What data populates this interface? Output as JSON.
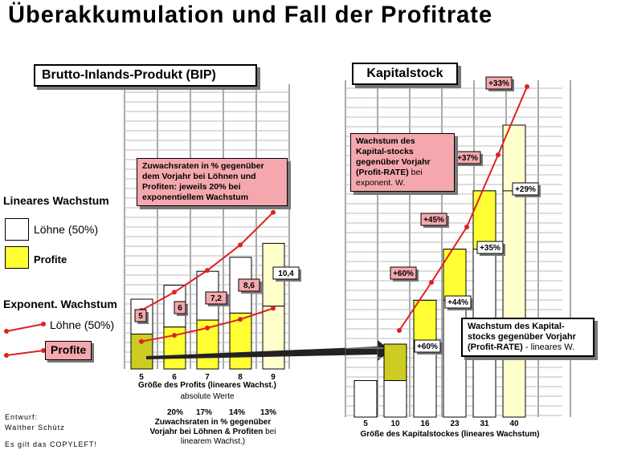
{
  "title": "Überakkumulation und Fall der Profitrate",
  "colors": {
    "profit_yellow": "#ffff33",
    "profit_olive": "#cccc22",
    "wage_white": "#ffffff",
    "wage_cream": "#ffffcc",
    "line_red": "#dd2222",
    "pink": "#f4a8ae",
    "grid": "#bbbbbb"
  },
  "left_panel": {
    "title": "Brutto-Inlands-Produkt (BIP)",
    "note": "Zuwachsraten in % gegenüber\ndem Vorjahr bei Löhnen und\nProfiten: jeweils 20% bei\nexponentiellem Wachstum",
    "xlabel": "Größe des Profits (lineares Wachst.)",
    "xlabel_sub": "absolute Werte",
    "growth_caption_bold": "Zuwachsraten in % gegenüber\nVorjahr bei Löhnen & Profiten",
    "growth_caption_light": "bei\nlinearem Wachst.)",
    "growth_rates": [
      "20%",
      "17%",
      "14%",
      "13%"
    ]
  },
  "right_panel": {
    "title": "Kapitalstock",
    "note_bold": "Wachstum des\nKapital-stocks\ngegenüber Vorjahr\n(Profit-RATE)",
    "note_light": "bei\nexponent. W.",
    "linear_box_bold": "Wachstum des Kapital-\nstocks gegenüber Vorjahr\n(Profit-RATE)",
    "linear_box_light": "- lineares W.",
    "xlabel": "Größe des Kapitalstockes (lineares Wachstum)"
  },
  "legend": {
    "linear_heading": "Lineares Wachstum",
    "wages_label": "Löhne (50%)",
    "profits_label": "Profite",
    "exp_heading": "Exponent. Wachstum",
    "exp_wages_label": "Löhne (50%)",
    "exp_profits_label": "Profite"
  },
  "credits": {
    "line1": "Entwurf:",
    "line2": "Walther Schütz",
    "line3": "Es gilt das COPYLEFT!"
  },
  "chart_data": [
    {
      "type": "bar",
      "name": "BIP",
      "categories": [
        "5",
        "6",
        "7",
        "8",
        "9"
      ],
      "series": [
        {
          "name": "Profite",
          "values": [
            5,
            6,
            7,
            8,
            9
          ]
        },
        {
          "name": "Löhne (50%)",
          "values": [
            5,
            6,
            7,
            8,
            9
          ]
        }
      ],
      "exponential_profit_labels": [
        "5",
        "6",
        "7,2",
        "8,6",
        "10,4"
      ],
      "exponential_profits": [
        5,
        6,
        7.2,
        8.6,
        10.4
      ]
    },
    {
      "type": "bar",
      "name": "Kapitalstock",
      "categories": [
        "5",
        "10",
        "16",
        "23",
        "31",
        "40"
      ],
      "values": [
        5,
        10,
        16,
        23,
        31,
        40
      ],
      "linear_rate_labels": [
        "+60%",
        "+44%",
        "+35%",
        "+29%"
      ],
      "exponential_rate_labels": [
        "+60%",
        "+45%",
        "+37%",
        "+33%"
      ]
    }
  ]
}
